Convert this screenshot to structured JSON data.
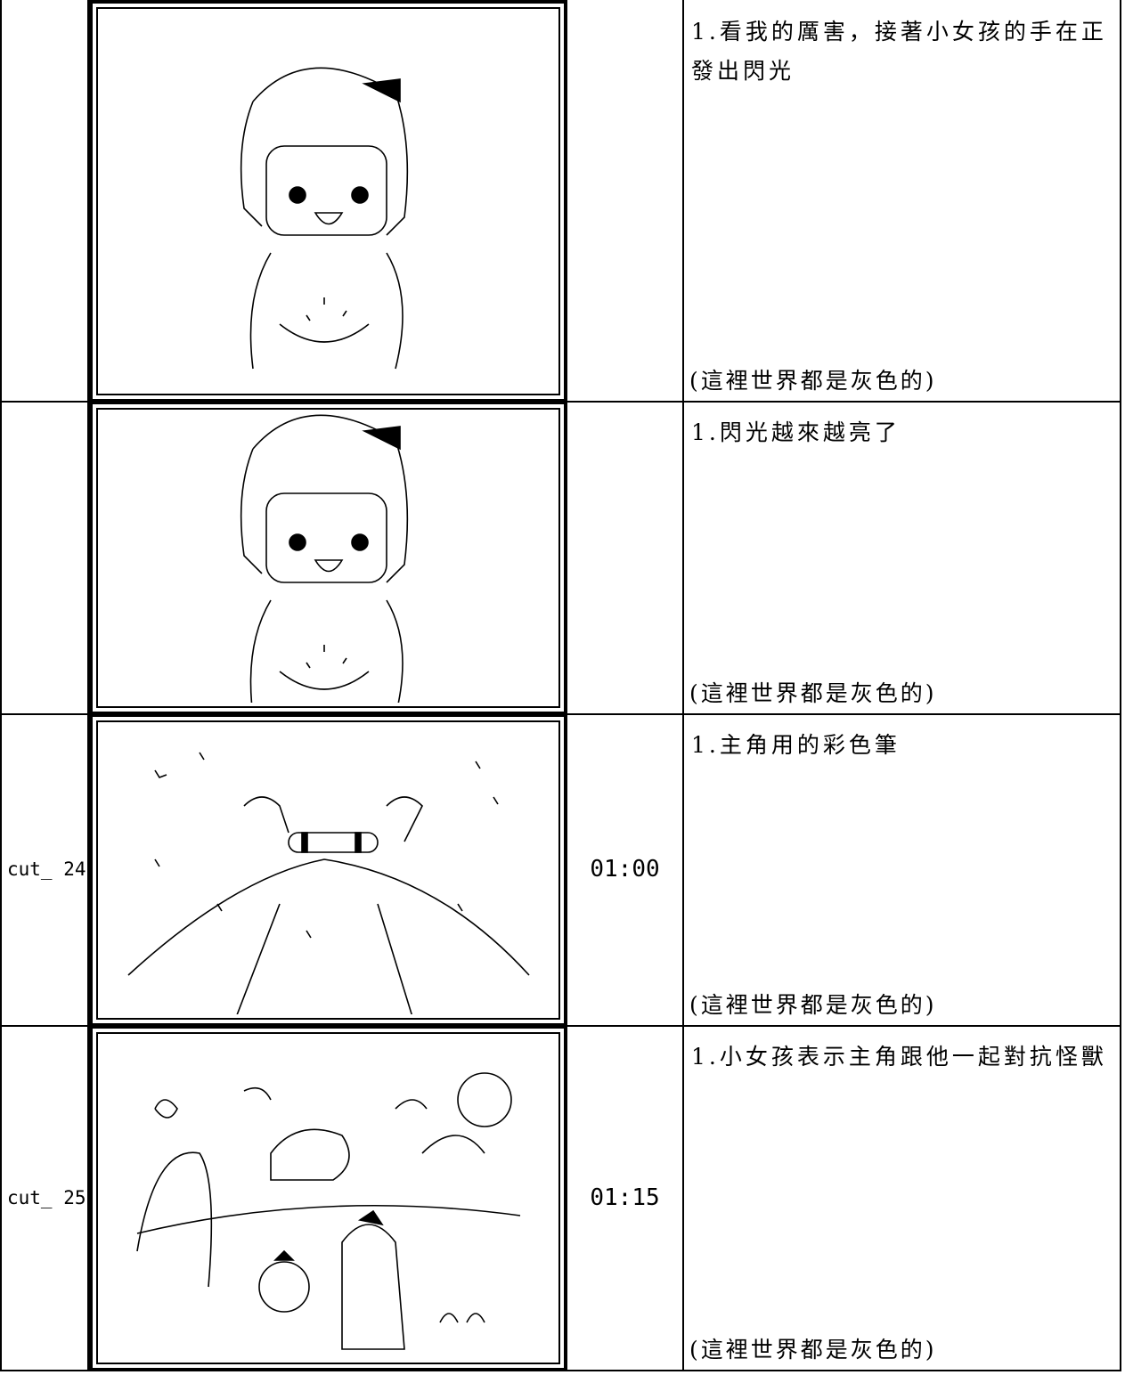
{
  "table": {
    "rows": [
      {
        "description": "1.看我的厲害，接著小女孩的手在正發出閃光",
        "note": "(這裡世界都是灰色的)"
      },
      {
        "description": "1.閃光越來越亮了",
        "note": "(這裡世界都是灰色的)"
      },
      {
        "cut": "cut_ 24",
        "time": "01:00",
        "description": "1.主角用的彩色筆",
        "note": "(這裡世界都是灰色的)"
      },
      {
        "cut": "cut_ 25",
        "time": "01:15",
        "description": "1.小女孩表示主角跟他一起對抗怪獸",
        "note": "(這裡世界都是灰色的)"
      }
    ]
  }
}
